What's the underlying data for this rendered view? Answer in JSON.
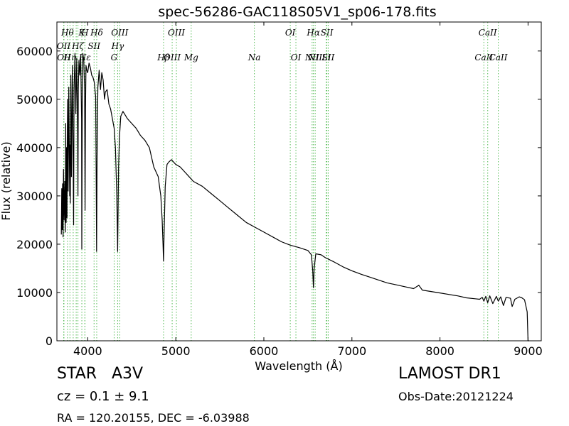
{
  "chart_data": {
    "type": "line",
    "title": "spec-56286-GAC118S05V1_sp06-178.fits",
    "xlabel": "Wavelength (Å)",
    "ylabel": "Flux (relative)",
    "xlim": [
      3650,
      9150
    ],
    "ylim": [
      0,
      66000
    ],
    "xticks": [
      4000,
      5000,
      6000,
      7000,
      8000,
      9000
    ],
    "yticks": [
      0,
      10000,
      20000,
      30000,
      40000,
      50000,
      60000
    ],
    "grid": false,
    "series": [
      {
        "line_color": "#000000",
        "x": [
          3700,
          3705,
          3710,
          3715,
          3720,
          3725,
          3732,
          3740,
          3745,
          3750,
          3755,
          3760,
          3765,
          3770,
          3778,
          3785,
          3795,
          3798,
          3803,
          3808,
          3815,
          3825,
          3835,
          3840,
          3845,
          3855,
          3865,
          3875,
          3885,
          3889,
          3893,
          3900,
          3910,
          3920,
          3930,
          3933,
          3938,
          3945,
          3955,
          3965,
          3970,
          3975,
          3980,
          3990,
          4000,
          4015,
          4030,
          4045,
          4060,
          4075,
          4090,
          4096,
          4101,
          4106,
          4115,
          4130,
          4145,
          4160,
          4175,
          4190,
          4200,
          4220,
          4240,
          4260,
          4280,
          4300,
          4315,
          4330,
          4337,
          4340,
          4343,
          4350,
          4360,
          4375,
          4400,
          4450,
          4500,
          4550,
          4600,
          4650,
          4700,
          4750,
          4800,
          4830,
          4845,
          4855,
          4861,
          4867,
          4880,
          4900,
          4920,
          4950,
          5000,
          5050,
          5100,
          5150,
          5200,
          5300,
          5400,
          5500,
          5600,
          5700,
          5800,
          5900,
          6000,
          6100,
          6200,
          6300,
          6400,
          6500,
          6540,
          6555,
          6563,
          6571,
          6590,
          6650,
          6700,
          6800,
          6900,
          7000,
          7100,
          7200,
          7300,
          7400,
          7500,
          7600,
          7700,
          7760,
          7800,
          7900,
          8000,
          8100,
          8200,
          8300,
          8400,
          8450,
          8480,
          8498,
          8520,
          8542,
          8565,
          8600,
          8640,
          8662,
          8690,
          8720,
          8750,
          8800,
          8820,
          8850,
          8880,
          8900,
          8930,
          8960,
          8990,
          9000,
          9010
        ],
        "y": [
          22000,
          31500,
          23000,
          32500,
          21500,
          35500,
          25000,
          33000,
          22500,
          45000,
          24500,
          40000,
          25500,
          50000,
          31000,
          52500,
          30000,
          40500,
          28500,
          55000,
          34000,
          57000,
          35500,
          24000,
          52000,
          59500,
          47000,
          58500,
          43000,
          30000,
          52000,
          58000,
          55000,
          59000,
          46000,
          19000,
          51000,
          59500,
          58000,
          52000,
          27000,
          48000,
          57000,
          56000,
          55500,
          57500,
          56500,
          55000,
          54500,
          53500,
          50500,
          35000,
          18500,
          38000,
          52500,
          56000,
          52000,
          55500,
          54000,
          50000,
          51500,
          52000,
          49000,
          48000,
          46000,
          44000,
          40000,
          30000,
          22000,
          18500,
          24000,
          36000,
          42000,
          46500,
          47500,
          46000,
          45000,
          44000,
          42500,
          41500,
          40000,
          36000,
          34000,
          30000,
          25000,
          20000,
          16500,
          22000,
          32000,
          36500,
          37000,
          37500,
          36500,
          36000,
          35000,
          34000,
          33000,
          32000,
          30500,
          29000,
          27500,
          26000,
          24500,
          23500,
          22500,
          21500,
          20500,
          19800,
          19300,
          18700,
          17800,
          14500,
          11000,
          15000,
          18000,
          17800,
          17200,
          16300,
          15300,
          14500,
          13800,
          13200,
          12600,
          12000,
          11600,
          11200,
          10800,
          11500,
          10500,
          10200,
          9900,
          9600,
          9300,
          8900,
          8700,
          8600,
          9000,
          8200,
          9200,
          7900,
          9300,
          7700,
          9200,
          8200,
          9100,
          7300,
          9000,
          8800,
          7100,
          8600,
          8900,
          9100,
          8900,
          8500,
          6000,
          0,
          0
        ]
      }
    ],
    "spectral_lines": [
      {
        "wavelength": 3727,
        "label": "OII",
        "row": 2
      },
      {
        "wavelength": 3730,
        "label": "OII",
        "row": 3
      },
      {
        "wavelength": 3770,
        "label": "Hθ",
        "row": 1
      },
      {
        "wavelength": 3798,
        "label": "Hη",
        "row": 3
      },
      {
        "wavelength": 3835,
        "label": "",
        "row": 0
      },
      {
        "wavelength": 3869,
        "label": "",
        "row": 0
      },
      {
        "wavelength": 3889,
        "label": "Hζ",
        "row": 2
      },
      {
        "wavelength": 3933,
        "label": "K",
        "row": 1
      },
      {
        "wavelength": 3968,
        "label": "Hε",
        "row": 3
      },
      {
        "wavelength": 3968,
        "label": "H",
        "row": 0
      },
      {
        "wavelength": 4072,
        "label": "SII",
        "row": 2
      },
      {
        "wavelength": 4102,
        "label": "Hδ",
        "row": 1
      },
      {
        "wavelength": 4300,
        "label": "G",
        "row": 4
      },
      {
        "wavelength": 4340,
        "label": "Hγ",
        "row": 2
      },
      {
        "wavelength": 4363,
        "label": "OIII",
        "row": 1
      },
      {
        "wavelength": 4861,
        "label": "Hβ",
        "row": 4
      },
      {
        "wavelength": 4959,
        "label": "OIII",
        "row": 3
      },
      {
        "wavelength": 5007,
        "label": "OIII",
        "row": 1
      },
      {
        "wavelength": 5175,
        "label": "Mg",
        "row": 4
      },
      {
        "wavelength": 5892,
        "label": "Na",
        "row": 3
      },
      {
        "wavelength": 6300,
        "label": "OI",
        "row": 1
      },
      {
        "wavelength": 6364,
        "label": "OI",
        "row": 4
      },
      {
        "wavelength": 6548,
        "label": "NII",
        "row": 3
      },
      {
        "wavelength": 6563,
        "label": "Hα",
        "row": 1
      },
      {
        "wavelength": 6583,
        "label": "NII",
        "row": 4
      },
      {
        "wavelength": 6708,
        "label": "Li",
        "row": 3
      },
      {
        "wavelength": 6716,
        "label": "SII",
        "row": 1
      },
      {
        "wavelength": 6731,
        "label": "SII",
        "row": 4
      },
      {
        "wavelength": 8498,
        "label": "CaII",
        "row": 3
      },
      {
        "wavelength": 8542,
        "label": "CaII",
        "row": 1
      },
      {
        "wavelength": 8662,
        "label": "CaII",
        "row": 4
      }
    ],
    "spectral_line_color": "#55bb55"
  },
  "info": {
    "class_label": "STAR",
    "subclass": "A3V",
    "redshift": "cz = 0.1 ± 9.1",
    "coords": "RA = 120.20155, DEC = -6.03988",
    "survey": "LAMOST DR1",
    "obs_date": "Obs-Date:20121224"
  }
}
